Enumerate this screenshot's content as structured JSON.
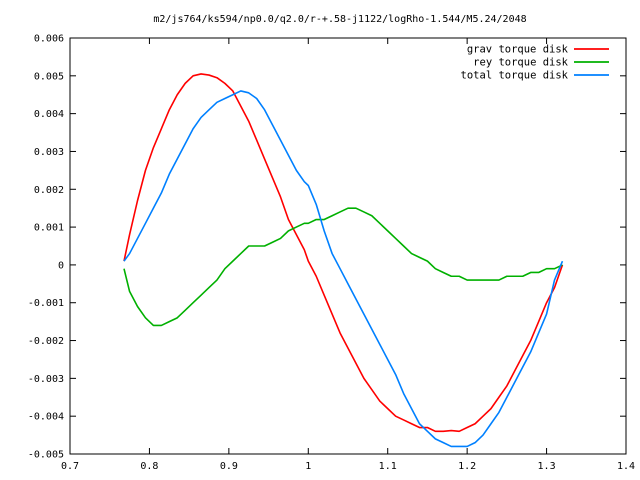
{
  "chart_data": {
    "type": "line",
    "title": "m2/js764/ks594/np0.0/q2.0/r-+.58-j1122/logRho-1.544/M5.24/2048",
    "xlabel": "",
    "ylabel": "",
    "xlim": [
      0.7,
      1.4
    ],
    "ylim": [
      -0.005,
      0.006
    ],
    "xticks": [
      0.7,
      0.8,
      0.9,
      1,
      1.1,
      1.2,
      1.3,
      1.4
    ],
    "xtick_labels": [
      "0.7",
      "0.8",
      "0.9",
      "1",
      "1.1",
      "1.2",
      "1.3",
      "1.4"
    ],
    "yticks": [
      -0.005,
      -0.004,
      -0.003,
      -0.002,
      -0.001,
      0,
      0.001,
      0.002,
      0.003,
      0.004,
      0.005,
      0.006
    ],
    "ytick_labels": [
      "-0.005",
      "-0.004",
      "-0.003",
      "-0.002",
      "-0.001",
      "0",
      "0.001",
      "0.002",
      "0.003",
      "0.004",
      "0.005",
      "0.006"
    ],
    "grid": false,
    "legend_position": "top-right",
    "series": [
      {
        "name": "grav torque disk",
        "color": "#ff0000",
        "x": [
          0.768,
          0.775,
          0.785,
          0.795,
          0.805,
          0.815,
          0.825,
          0.835,
          0.845,
          0.855,
          0.865,
          0.875,
          0.885,
          0.895,
          0.905,
          0.915,
          0.925,
          0.935,
          0.945,
          0.955,
          0.965,
          0.975,
          0.985,
          0.995,
          1.0,
          1.01,
          1.02,
          1.03,
          1.04,
          1.05,
          1.06,
          1.07,
          1.08,
          1.09,
          1.1,
          1.11,
          1.12,
          1.13,
          1.14,
          1.15,
          1.16,
          1.17,
          1.18,
          1.19,
          1.2,
          1.21,
          1.22,
          1.23,
          1.24,
          1.25,
          1.26,
          1.27,
          1.28,
          1.29,
          1.3,
          1.31,
          1.32
        ],
        "y": [
          0.0001,
          0.0008,
          0.0017,
          0.0025,
          0.0031,
          0.0036,
          0.0041,
          0.0045,
          0.0048,
          0.005,
          0.00505,
          0.00502,
          0.00495,
          0.0048,
          0.0046,
          0.0042,
          0.0038,
          0.0033,
          0.0028,
          0.0023,
          0.0018,
          0.0012,
          0.0008,
          0.0004,
          0.0001,
          -0.0003,
          -0.0008,
          -0.0013,
          -0.0018,
          -0.0022,
          -0.0026,
          -0.003,
          -0.0033,
          -0.0036,
          -0.0038,
          -0.004,
          -0.0041,
          -0.0042,
          -0.0043,
          -0.0043,
          -0.0044,
          -0.0044,
          -0.00438,
          -0.0044,
          -0.0043,
          -0.0042,
          -0.004,
          -0.0038,
          -0.0035,
          -0.0032,
          -0.0028,
          -0.0024,
          -0.002,
          -0.0015,
          -0.001,
          -0.0006,
          0.0
        ]
      },
      {
        "name": "rey torque disk",
        "color": "#00b000",
        "x": [
          0.768,
          0.775,
          0.785,
          0.795,
          0.805,
          0.815,
          0.825,
          0.835,
          0.845,
          0.855,
          0.865,
          0.875,
          0.885,
          0.895,
          0.905,
          0.915,
          0.925,
          0.935,
          0.945,
          0.955,
          0.965,
          0.975,
          0.985,
          0.995,
          1.0,
          1.01,
          1.02,
          1.03,
          1.04,
          1.05,
          1.06,
          1.07,
          1.08,
          1.09,
          1.1,
          1.11,
          1.12,
          1.13,
          1.14,
          1.15,
          1.16,
          1.17,
          1.18,
          1.19,
          1.2,
          1.21,
          1.22,
          1.23,
          1.24,
          1.25,
          1.26,
          1.27,
          1.28,
          1.29,
          1.3,
          1.31,
          1.32
        ],
        "y": [
          -0.0001,
          -0.0007,
          -0.0011,
          -0.0014,
          -0.0016,
          -0.0016,
          -0.0015,
          -0.0014,
          -0.0012,
          -0.001,
          -0.0008,
          -0.0006,
          -0.0004,
          -0.0001,
          0.0001,
          0.0003,
          0.0005,
          0.0005,
          0.0005,
          0.0006,
          0.0007,
          0.0009,
          0.001,
          0.0011,
          0.0011,
          0.0012,
          0.0012,
          0.0013,
          0.0014,
          0.0015,
          0.0015,
          0.0014,
          0.0013,
          0.0011,
          0.0009,
          0.0007,
          0.0005,
          0.0003,
          0.0002,
          0.0001,
          -0.0001,
          -0.0002,
          -0.0003,
          -0.0003,
          -0.0004,
          -0.0004,
          -0.0004,
          -0.0004,
          -0.0004,
          -0.0003,
          -0.0003,
          -0.0003,
          -0.0002,
          -0.0002,
          -0.0001,
          -0.0001,
          0.0
        ]
      },
      {
        "name": "total torque disk",
        "color": "#0080ff",
        "x": [
          0.768,
          0.775,
          0.785,
          0.795,
          0.805,
          0.815,
          0.825,
          0.835,
          0.845,
          0.855,
          0.865,
          0.875,
          0.885,
          0.895,
          0.905,
          0.915,
          0.925,
          0.935,
          0.945,
          0.955,
          0.965,
          0.975,
          0.985,
          0.995,
          1.0,
          1.01,
          1.02,
          1.03,
          1.04,
          1.05,
          1.06,
          1.07,
          1.08,
          1.09,
          1.1,
          1.11,
          1.12,
          1.13,
          1.14,
          1.15,
          1.16,
          1.17,
          1.18,
          1.19,
          1.2,
          1.21,
          1.22,
          1.23,
          1.24,
          1.25,
          1.26,
          1.27,
          1.28,
          1.29,
          1.3,
          1.31,
          1.32
        ],
        "y": [
          0.0001,
          0.0003,
          0.0007,
          0.0011,
          0.0015,
          0.0019,
          0.0024,
          0.0028,
          0.0032,
          0.0036,
          0.0039,
          0.0041,
          0.0043,
          0.0044,
          0.0045,
          0.0046,
          0.00455,
          0.0044,
          0.0041,
          0.0037,
          0.0033,
          0.0029,
          0.0025,
          0.0022,
          0.0021,
          0.0016,
          0.0009,
          0.0003,
          -0.0001,
          -0.0005,
          -0.0009,
          -0.0013,
          -0.0017,
          -0.0021,
          -0.0025,
          -0.0029,
          -0.0034,
          -0.0038,
          -0.0042,
          -0.0044,
          -0.0046,
          -0.0047,
          -0.0048,
          -0.0048,
          -0.0048,
          -0.0047,
          -0.0045,
          -0.0042,
          -0.0039,
          -0.0035,
          -0.0031,
          -0.0027,
          -0.0023,
          -0.0018,
          -0.0013,
          -0.0004,
          0.0001
        ]
      }
    ]
  }
}
